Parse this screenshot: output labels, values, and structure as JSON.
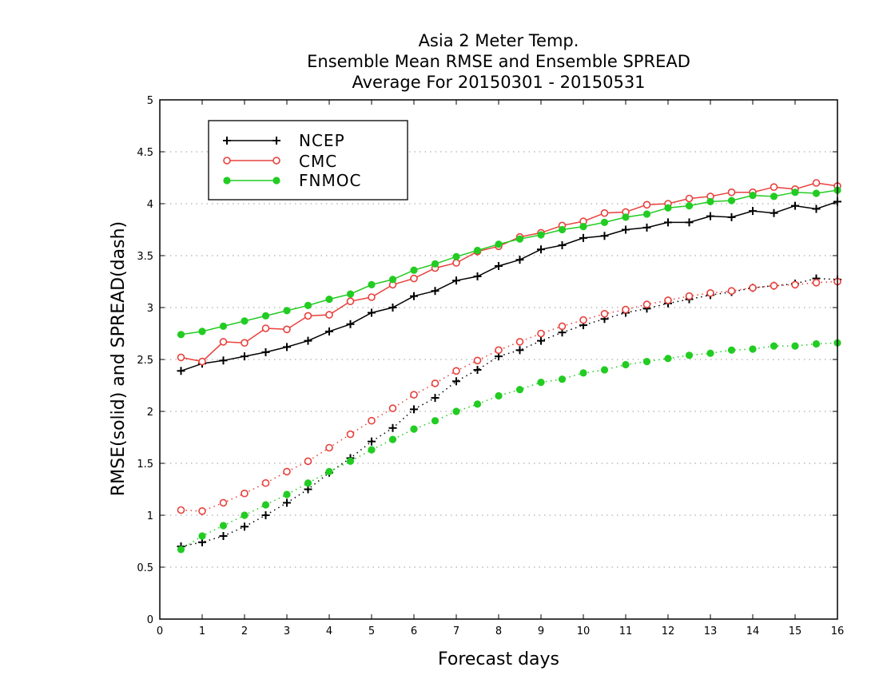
{
  "chart_data": {
    "type": "line",
    "title_lines": [
      "Asia 2 Meter Temp.",
      "Ensemble Mean RMSE and Ensemble SPREAD",
      "Average For 20150301 - 20150531"
    ],
    "xlabel": "Forecast days",
    "ylabel": "RMSE(solid) and SPREAD(dash)",
    "xlim": [
      0,
      16
    ],
    "ylim": [
      0,
      5
    ],
    "x_ticks": [
      "0",
      "1",
      "2",
      "3",
      "4",
      "5",
      "6",
      "7",
      "8",
      "9",
      "10",
      "11",
      "12",
      "13",
      "14",
      "15",
      "16"
    ],
    "y_ticks": [
      "0",
      "0.5",
      "1",
      "1.5",
      "2",
      "2.5",
      "3",
      "3.5",
      "4",
      "4.5",
      "5"
    ],
    "grid": "dotted-horizontal",
    "legend_position": "top-left",
    "x": [
      0.5,
      1,
      1.5,
      2,
      2.5,
      3,
      3.5,
      4,
      4.5,
      5,
      5.5,
      6,
      6.5,
      7,
      7.5,
      8,
      8.5,
      9,
      9.5,
      10,
      10.5,
      11,
      11.5,
      12,
      12.5,
      13,
      13.5,
      14,
      14.5,
      15,
      15.5,
      16
    ],
    "series": [
      {
        "name": "NCEP",
        "color": "#000000",
        "marker": "plus",
        "rmse": [
          2.39,
          2.46,
          2.49,
          2.53,
          2.57,
          2.62,
          2.68,
          2.77,
          2.84,
          2.95,
          3.0,
          3.11,
          3.16,
          3.26,
          3.3,
          3.4,
          3.46,
          3.56,
          3.6,
          3.67,
          3.69,
          3.75,
          3.77,
          3.82,
          3.82,
          3.88,
          3.87,
          3.93,
          3.91,
          3.98,
          3.95,
          4.02
        ],
        "spread": [
          0.7,
          0.74,
          0.8,
          0.89,
          1.0,
          1.12,
          1.25,
          1.41,
          1.55,
          1.71,
          1.84,
          2.02,
          2.13,
          2.29,
          2.4,
          2.53,
          2.59,
          2.68,
          2.76,
          2.83,
          2.89,
          2.95,
          2.99,
          3.04,
          3.08,
          3.12,
          3.15,
          3.19,
          3.21,
          3.23,
          3.28,
          3.27
        ]
      },
      {
        "name": "CMC",
        "color": "#e8403c",
        "marker": "open-circle",
        "rmse": [
          2.52,
          2.48,
          2.67,
          2.66,
          2.8,
          2.79,
          2.92,
          2.93,
          3.06,
          3.1,
          3.22,
          3.28,
          3.38,
          3.43,
          3.54,
          3.59,
          3.68,
          3.72,
          3.79,
          3.83,
          3.91,
          3.92,
          3.99,
          4.0,
          4.05,
          4.07,
          4.11,
          4.11,
          4.16,
          4.14,
          4.2,
          4.17
        ],
        "spread": [
          1.05,
          1.04,
          1.12,
          1.21,
          1.31,
          1.42,
          1.52,
          1.65,
          1.78,
          1.91,
          2.03,
          2.16,
          2.27,
          2.39,
          2.49,
          2.59,
          2.67,
          2.75,
          2.82,
          2.88,
          2.94,
          2.98,
          3.03,
          3.07,
          3.11,
          3.14,
          3.16,
          3.19,
          3.21,
          3.22,
          3.24,
          3.25
        ]
      },
      {
        "name": "FNMOC",
        "color": "#22cc22",
        "marker": "filled-circle",
        "rmse": [
          2.74,
          2.77,
          2.82,
          2.87,
          2.92,
          2.97,
          3.02,
          3.08,
          3.13,
          3.22,
          3.27,
          3.36,
          3.42,
          3.49,
          3.55,
          3.61,
          3.66,
          3.7,
          3.75,
          3.78,
          3.82,
          3.87,
          3.9,
          3.96,
          3.98,
          4.02,
          4.03,
          4.08,
          4.07,
          4.11,
          4.1,
          4.13
        ],
        "spread": [
          0.67,
          0.8,
          0.9,
          1.0,
          1.1,
          1.2,
          1.31,
          1.42,
          1.52,
          1.63,
          1.73,
          1.83,
          1.91,
          2.0,
          2.07,
          2.15,
          2.21,
          2.28,
          2.31,
          2.37,
          2.4,
          2.45,
          2.48,
          2.51,
          2.54,
          2.56,
          2.59,
          2.6,
          2.63,
          2.63,
          2.65,
          2.66
        ]
      }
    ]
  }
}
